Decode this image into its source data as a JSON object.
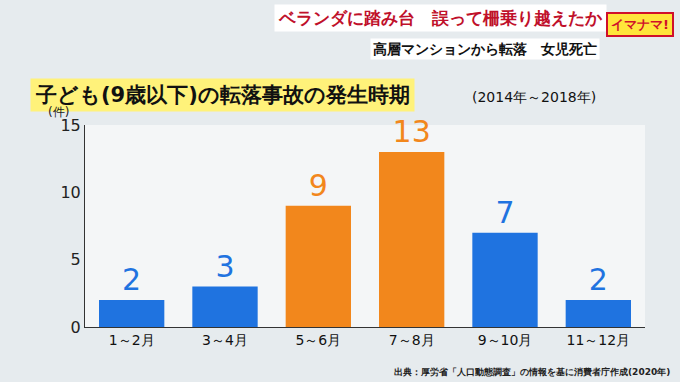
{
  "chart_data": {
    "type": "bar",
    "headline": "ベランダに踏み台　誤って柵乗り越えたか",
    "subheadline": "高層マンションから転落　女児死亡",
    "logo": "イマナマ!",
    "title": "子ども(9歳以下)の転落事故の発生時期",
    "subtitle": "(2014年～2018年)",
    "y_label": "(件)",
    "source": "出典：厚労省「人口動態調査」の情報を基に消費者庁作成(2020年)",
    "categories": [
      "1～2月",
      "3～4月",
      "5～6月",
      "7～8月",
      "9～10月",
      "11～12月"
    ],
    "values": [
      2,
      3,
      9,
      13,
      7,
      2
    ],
    "colors": [
      "#1f73e0",
      "#1f73e0",
      "#f2871c",
      "#f2871c",
      "#1f73e0",
      "#1f73e0"
    ],
    "ylim": [
      0,
      15
    ],
    "yticks": [
      0,
      5,
      10,
      15
    ],
    "grid": false,
    "data_labels": true
  }
}
